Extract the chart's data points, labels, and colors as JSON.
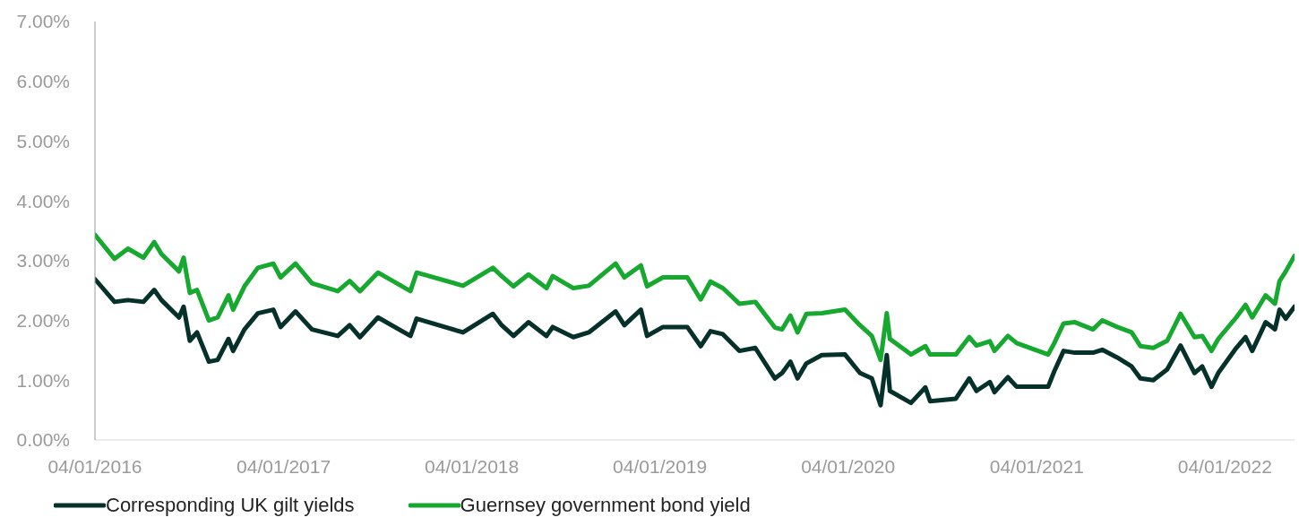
{
  "chart_data": {
    "type": "line",
    "x": [
      "2016-01-04",
      "2016-02-11",
      "2016-03-08",
      "2016-04-07",
      "2016-04-28",
      "2016-05-12",
      "2016-06-15",
      "2016-06-24",
      "2016-07-06",
      "2016-07-20",
      "2016-08-12",
      "2016-08-29",
      "2016-09-19",
      "2016-09-28",
      "2016-10-20",
      "2016-11-15",
      "2016-12-15",
      "2016-12-29",
      "2017-01-27",
      "2017-02-28",
      "2017-04-19",
      "2017-05-12",
      "2017-06-01",
      "2017-07-06",
      "2017-09-07",
      "2017-09-19",
      "2017-12-18",
      "2018-02-14",
      "2018-03-03",
      "2018-03-26",
      "2018-04-24",
      "2018-05-29",
      "2018-06-10",
      "2018-07-20",
      "2018-08-19",
      "2018-10-10",
      "2018-10-27",
      "2018-11-28",
      "2018-12-10",
      "2019-01-10",
      "2019-02-26",
      "2019-03-24",
      "2019-04-12",
      "2019-05-06",
      "2019-06-07",
      "2019-07-08",
      "2019-08-15",
      "2019-08-29",
      "2019-09-14",
      "2019-09-28",
      "2019-10-15",
      "2019-11-14",
      "2019-12-29",
      "2020-01-27",
      "2020-02-19",
      "2020-03-07",
      "2020-03-19",
      "2020-03-25",
      "2020-05-05",
      "2020-06-02",
      "2020-06-11",
      "2020-07-31",
      "2020-08-26",
      "2020-09-09",
      "2020-10-05",
      "2020-10-14",
      "2020-11-09",
      "2020-11-26",
      "2021-01-26",
      "2021-02-07",
      "2021-02-25",
      "2021-03-19",
      "2021-04-23",
      "2021-05-11",
      "2021-06-09",
      "2021-07-07",
      "2021-07-24",
      "2021-08-18",
      "2021-09-14",
      "2021-10-10",
      "2021-11-06",
      "2021-11-21",
      "2021-12-09",
      "2021-12-22",
      "2022-01-26",
      "2022-02-13",
      "2022-02-26",
      "2022-03-24",
      "2022-04-11",
      "2022-04-20",
      "2022-05-02",
      "2022-05-19"
    ],
    "series": [
      {
        "name": "Corresponding UK gilt yields",
        "color": "#06302a",
        "values": [
          2.69,
          2.31,
          2.34,
          2.31,
          2.51,
          2.34,
          2.05,
          2.23,
          1.66,
          1.8,
          1.31,
          1.34,
          1.69,
          1.49,
          1.85,
          2.12,
          2.18,
          1.89,
          2.15,
          1.85,
          1.74,
          1.92,
          1.72,
          2.05,
          1.74,
          2.03,
          1.8,
          2.11,
          1.92,
          1.74,
          1.97,
          1.74,
          1.89,
          1.72,
          1.8,
          2.15,
          1.92,
          2.18,
          1.74,
          1.89,
          1.89,
          1.57,
          1.82,
          1.77,
          1.49,
          1.54,
          1.03,
          1.12,
          1.31,
          1.03,
          1.28,
          1.42,
          1.43,
          1.12,
          1.03,
          0.58,
          1.42,
          0.82,
          0.62,
          0.88,
          0.65,
          0.69,
          1.03,
          0.82,
          0.97,
          0.8,
          1.05,
          0.89,
          0.89,
          1.15,
          1.49,
          1.46,
          1.46,
          1.51,
          1.38,
          1.23,
          1.03,
          1.0,
          1.18,
          1.58,
          1.12,
          1.23,
          0.89,
          1.12,
          1.54,
          1.72,
          1.49,
          1.97,
          1.85,
          2.18,
          2.03,
          2.23
        ]
      },
      {
        "name": "Guernsey government bond yield",
        "color": "#16a82f",
        "values": [
          3.43,
          3.03,
          3.2,
          3.05,
          3.31,
          3.11,
          2.82,
          3.05,
          2.46,
          2.51,
          2.0,
          2.05,
          2.42,
          2.18,
          2.57,
          2.88,
          2.95,
          2.72,
          2.95,
          2.62,
          2.49,
          2.66,
          2.49,
          2.8,
          2.49,
          2.8,
          2.58,
          2.88,
          2.74,
          2.57,
          2.77,
          2.54,
          2.74,
          2.54,
          2.58,
          2.95,
          2.72,
          2.92,
          2.57,
          2.72,
          2.72,
          2.35,
          2.65,
          2.54,
          2.28,
          2.31,
          1.88,
          1.85,
          2.08,
          1.8,
          2.11,
          2.12,
          2.18,
          1.92,
          1.74,
          1.34,
          2.12,
          1.69,
          1.43,
          1.57,
          1.43,
          1.43,
          1.72,
          1.58,
          1.65,
          1.49,
          1.74,
          1.62,
          1.43,
          1.62,
          1.95,
          1.97,
          1.85,
          2.0,
          1.89,
          1.8,
          1.57,
          1.54,
          1.66,
          2.11,
          1.72,
          1.74,
          1.49,
          1.69,
          2.05,
          2.26,
          2.05,
          2.42,
          2.28,
          2.66,
          2.82,
          3.08
        ]
      }
    ],
    "xticks": [
      {
        "value": "2016-01-04",
        "label": "04/01/2016"
      },
      {
        "value": "2017-01-04",
        "label": "04/01/2017"
      },
      {
        "value": "2018-01-04",
        "label": "04/01/2018"
      },
      {
        "value": "2019-01-04",
        "label": "04/01/2019"
      },
      {
        "value": "2020-01-04",
        "label": "04/01/2020"
      },
      {
        "value": "2021-01-04",
        "label": "04/01/2021"
      },
      {
        "value": "2022-01-04",
        "label": "04/01/2022"
      }
    ],
    "xlim": [
      "2016-01-04",
      "2022-05-19"
    ],
    "ylim": [
      0,
      7
    ],
    "yticks": [
      {
        "value": 0,
        "label": "0.00%"
      },
      {
        "value": 1,
        "label": "1.00%"
      },
      {
        "value": 2,
        "label": "2.00%"
      },
      {
        "value": 3,
        "label": "3.00%"
      },
      {
        "value": 4,
        "label": "4.00%"
      },
      {
        "value": 5,
        "label": "5.00%"
      },
      {
        "value": 6,
        "label": "6.00%"
      },
      {
        "value": 7,
        "label": "7.00%"
      }
    ],
    "grid": false,
    "legend": "bottom left",
    "marker": "none"
  }
}
